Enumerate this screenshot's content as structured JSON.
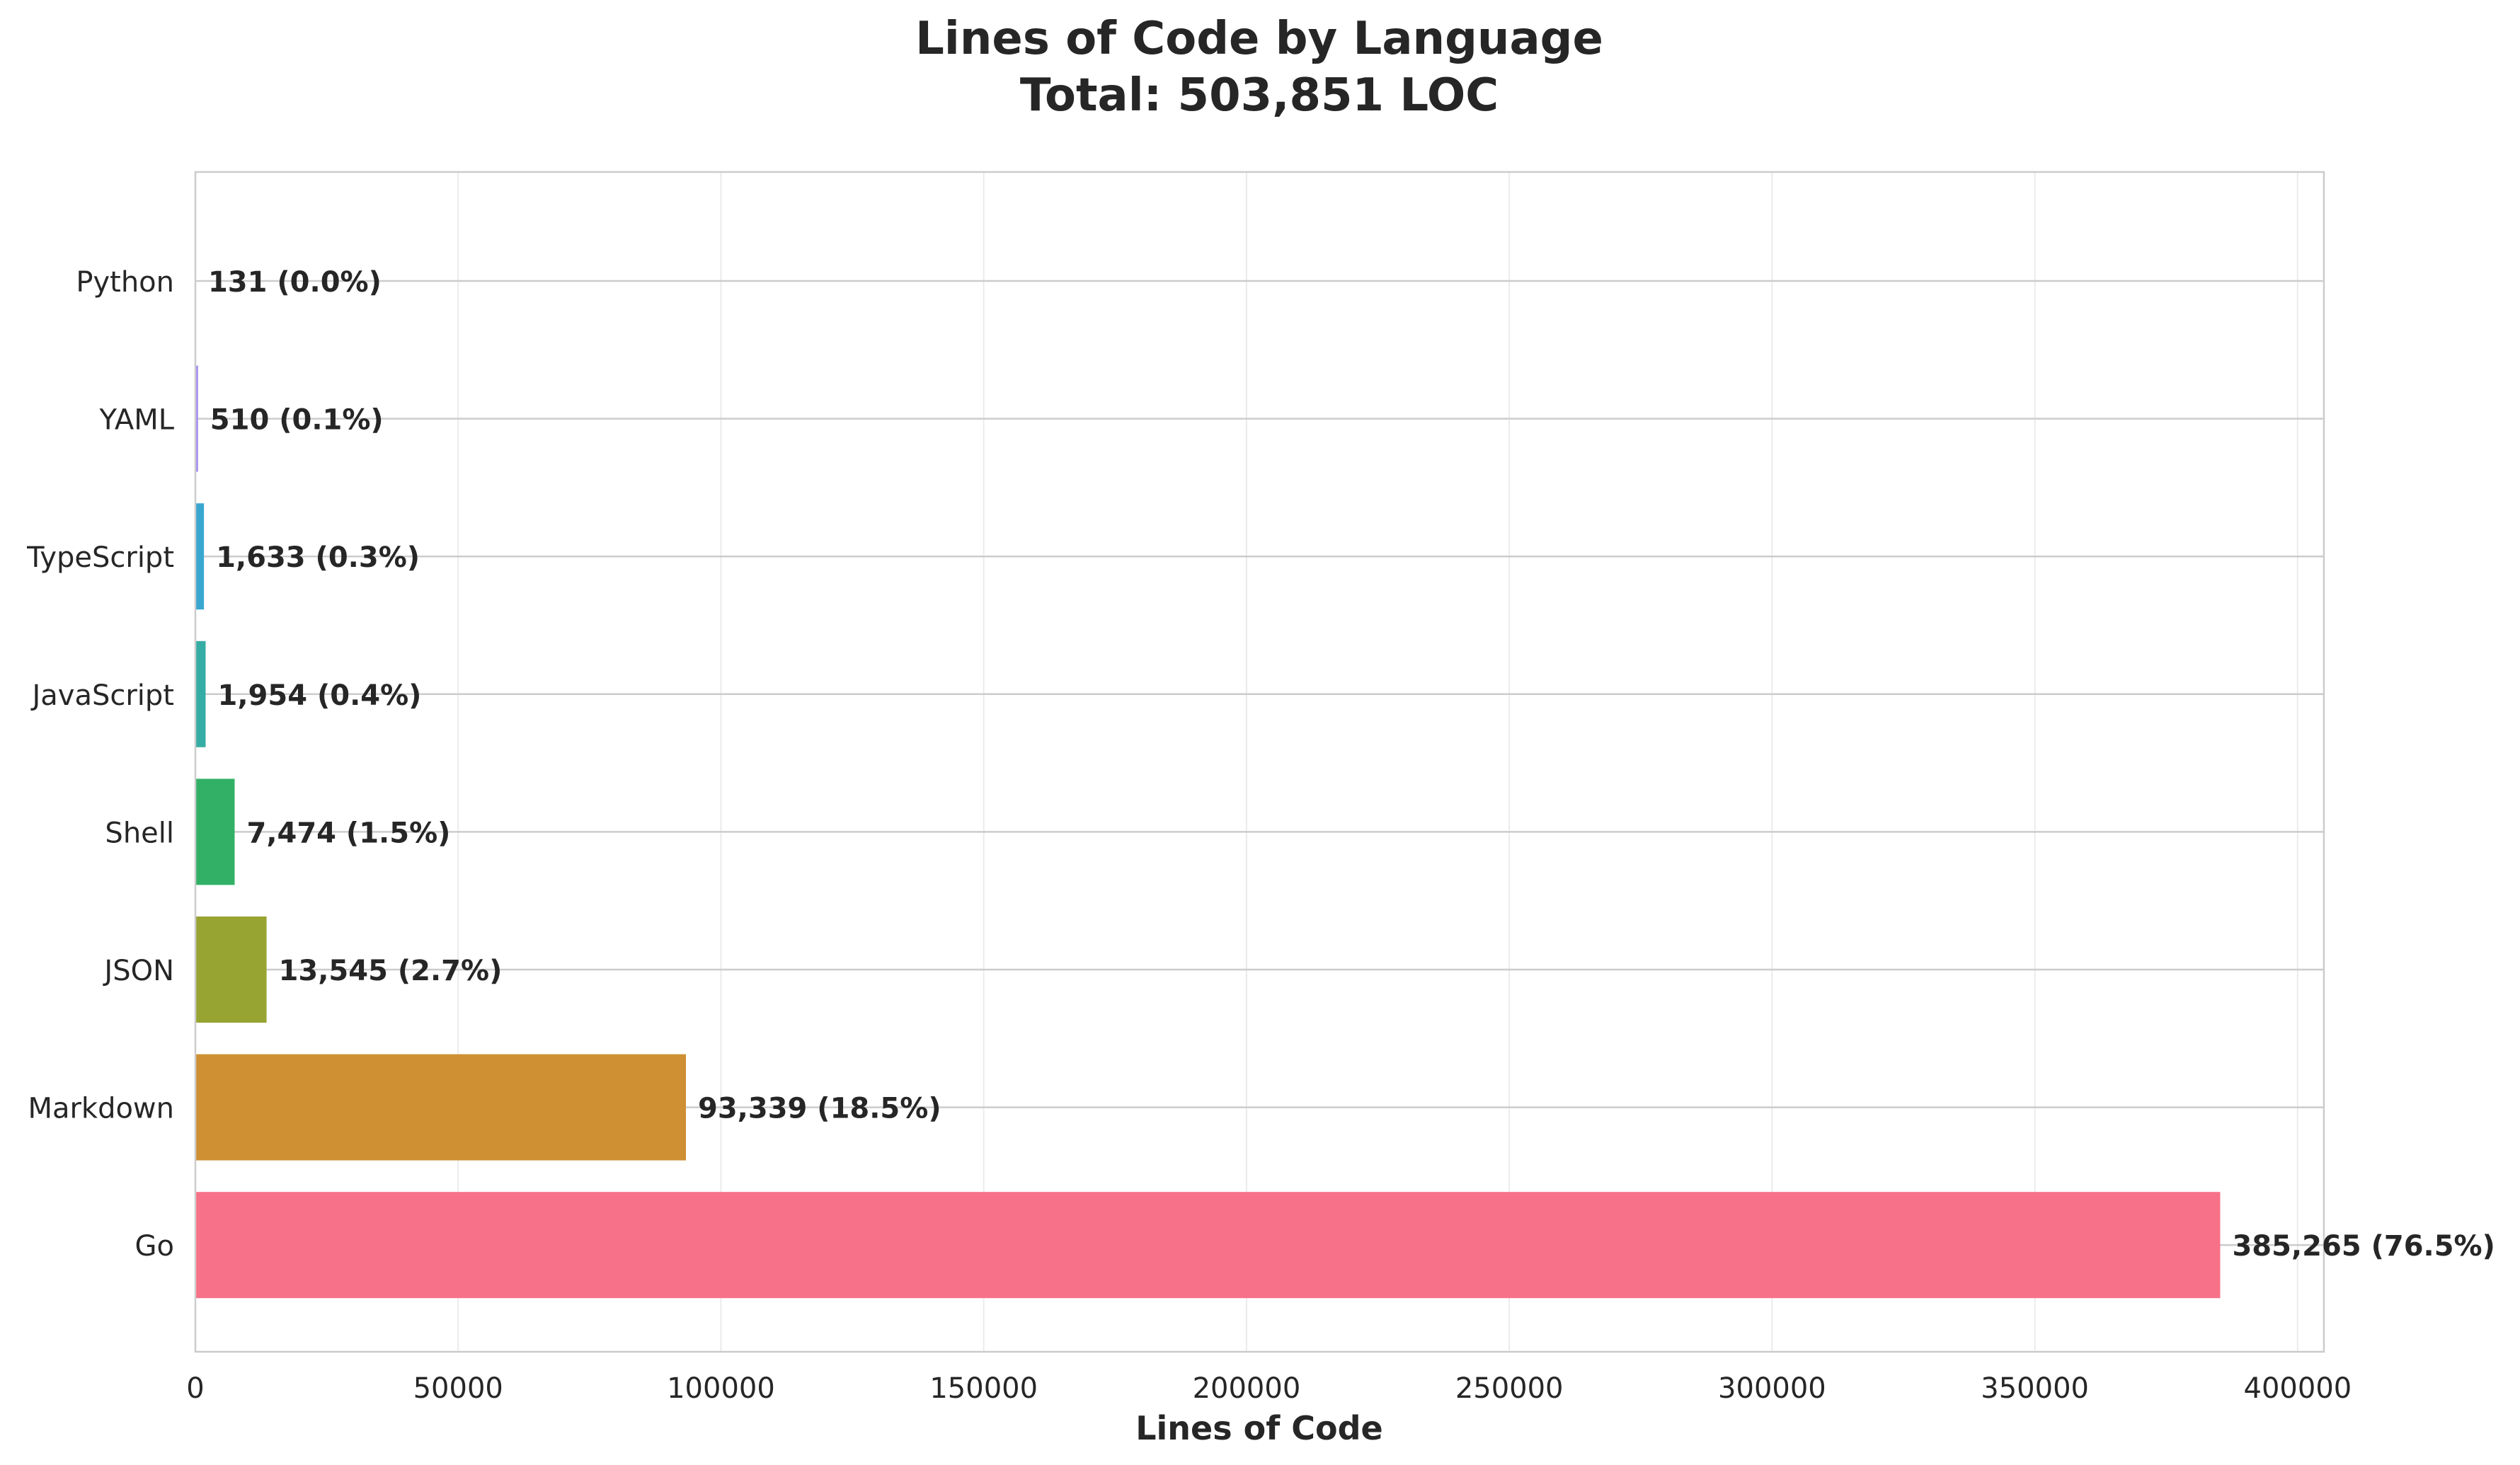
{
  "chart_data": {
    "type": "bar",
    "orientation": "horizontal",
    "title": "Lines of Code by Language",
    "subtitle": "Total: 503,851 LOC",
    "xlabel": "Lines of Code",
    "ylabel": "",
    "xlim": [
      0,
      405000
    ],
    "xticks": [
      0,
      50000,
      100000,
      150000,
      200000,
      250000,
      300000,
      350000,
      400000
    ],
    "xtick_labels": [
      "0",
      "50000",
      "100000",
      "150000",
      "200000",
      "250000",
      "300000",
      "350000",
      "400000"
    ],
    "grid": true,
    "categories": [
      "Go",
      "Markdown",
      "JSON",
      "Shell",
      "JavaScript",
      "TypeScript",
      "YAML",
      "Python"
    ],
    "values": [
      385265,
      93339,
      13545,
      7474,
      1954,
      1633,
      510,
      131
    ],
    "labels": [
      "385,265 (76.5%)",
      "93,339 (18.5%)",
      "13,545 (2.7%)",
      "7,474 (1.5%)",
      "1,954 (0.4%)",
      "1,633 (0.3%)",
      "510 (0.1%)",
      "131 (0.0%)"
    ],
    "colors": [
      "#f77189",
      "#ce9032",
      "#97a431",
      "#32b166",
      "#36ada4",
      "#39a7d0",
      "#a48cf4",
      "#f561dd"
    ]
  }
}
